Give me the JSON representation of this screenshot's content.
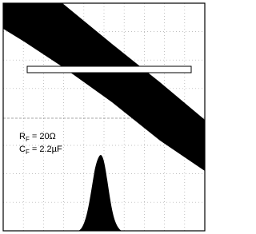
{
  "annotations": [
    {
      "symbol": "R",
      "subscript": "F",
      "text": "= 20Ω"
    },
    {
      "symbol": "C",
      "subscript": "F",
      "text": "= 2.2µF"
    }
  ]
}
